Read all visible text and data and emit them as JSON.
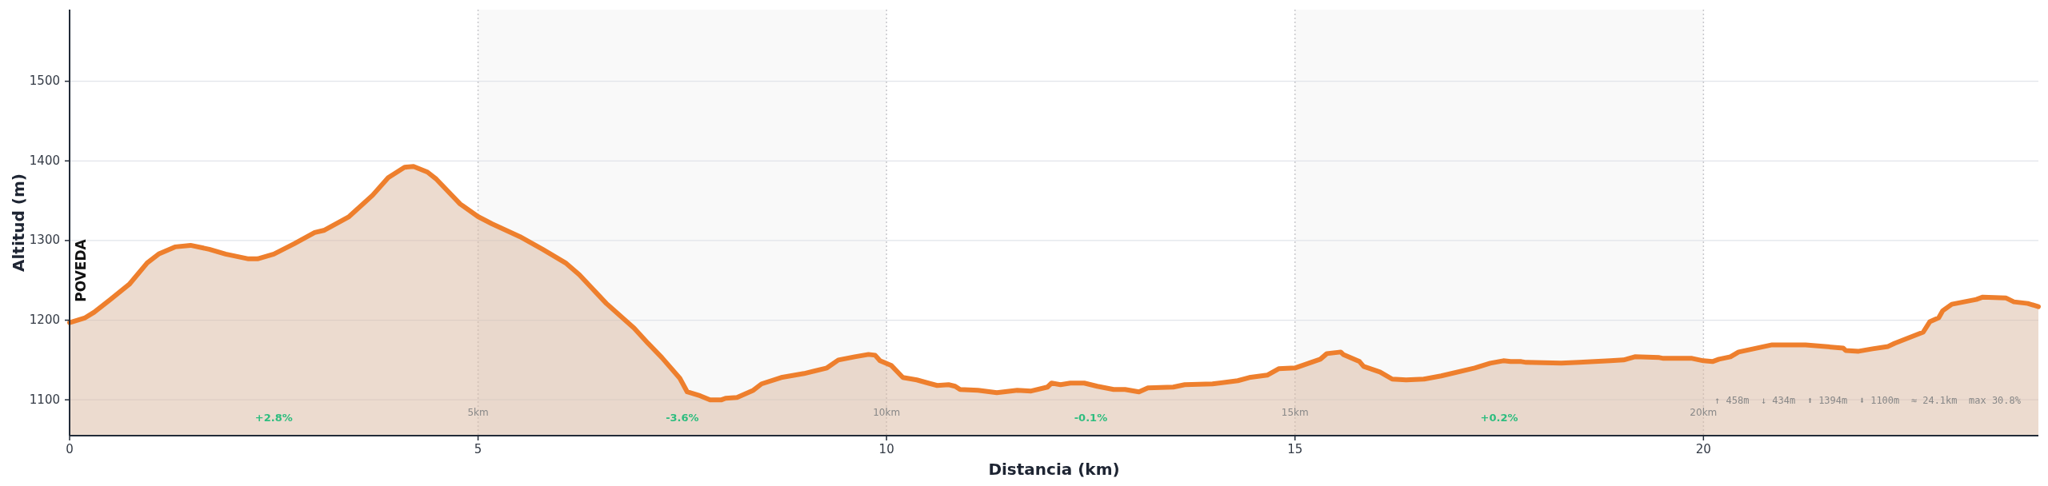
{
  "chart_data": {
    "type": "area",
    "xlabel": "Distancia (km)",
    "ylabel": "Altitud (m)",
    "xlim": [
      0,
      24.1
    ],
    "ylim": [
      1055,
      1590
    ],
    "xticks": [
      0,
      5,
      10,
      15,
      20
    ],
    "yticks": [
      1100,
      1200,
      1300,
      1400,
      1500
    ],
    "grid": "y",
    "bands": [
      {
        "axis": "x",
        "from": 5,
        "to": 10,
        "color": "#f9f9f9"
      },
      {
        "axis": "x",
        "from": 15,
        "to": 20,
        "color": "#f9f9f9"
      }
    ],
    "ref_lines": [
      {
        "axis": "x",
        "value": 5,
        "label": "5km",
        "color": "#c8c8cc",
        "line_style": "dotted"
      },
      {
        "axis": "x",
        "value": 10,
        "label": "10km",
        "color": "#c8c8cc",
        "line_style": "dotted"
      },
      {
        "axis": "x",
        "value": 15,
        "label": "15km",
        "color": "#c8c8cc",
        "line_style": "dotted"
      },
      {
        "axis": "x",
        "value": 20,
        "label": "20km",
        "color": "#c8c8cc",
        "line_style": "dotted"
      }
    ],
    "annotations": [
      "POVEDA",
      "+2.8%",
      "-3.6%",
      "-0.1%",
      "+0.2%",
      "↑ 458m  ↓ 434m  ⬆ 1394m  ⬇ 1100m  ≈ 24.1km  max 30.8%"
    ],
    "series": [
      {
        "color": "#ee7f2d",
        "x": [
          0,
          0.19,
          0.3,
          0.5,
          0.73,
          0.95,
          1.09,
          1.29,
          1.48,
          1.71,
          1.91,
          2.19,
          2.3,
          2.5,
          2.75,
          3.0,
          3.12,
          3.42,
          3.71,
          3.9,
          4.1,
          4.21,
          4.38,
          4.49,
          4.78,
          5.0,
          5.17,
          5.51,
          5.79,
          6.07,
          6.24,
          6.57,
          6.91,
          7.08,
          7.25,
          7.47,
          7.56,
          7.72,
          7.84,
          7.98,
          8.03,
          8.17,
          8.37,
          8.47,
          8.71,
          8.99,
          9.27,
          9.41,
          9.61,
          9.78,
          9.86,
          9.92,
          10.06,
          10.2,
          10.37,
          10.51,
          10.62,
          10.76,
          10.84,
          10.9,
          11.12,
          11.35,
          11.6,
          11.77,
          11.97,
          12.02,
          12.13,
          12.25,
          12.42,
          12.58,
          12.78,
          12.92,
          13.09,
          13.2,
          13.51,
          13.65,
          13.99,
          14.3,
          14.44,
          14.66,
          14.8,
          15.0,
          15.31,
          15.39,
          15.56,
          15.59,
          15.79,
          15.84,
          16.04,
          16.19,
          16.36,
          16.58,
          16.79,
          17.2,
          17.39,
          17.55,
          17.64,
          17.77,
          17.83,
          18.26,
          18.48,
          18.86,
          19.02,
          19.16,
          19.46,
          19.51,
          19.86,
          20.0,
          20.11,
          20.19,
          20.33,
          20.43,
          20.84,
          21.25,
          21.71,
          21.74,
          21.9,
          22.07,
          22.26,
          22.34,
          22.69,
          22.77,
          22.88,
          22.93,
          23.04,
          23.34,
          23.42,
          23.7,
          23.8,
          23.97,
          24.1
        ],
        "values": [
          1197,
          1203,
          1210,
          1226,
          1245,
          1272,
          1283,
          1292,
          1294,
          1289,
          1283,
          1277,
          1277,
          1283,
          1296,
          1310,
          1313,
          1330,
          1357,
          1379,
          1392,
          1393,
          1386,
          1377,
          1346,
          1330,
          1321,
          1305,
          1289,
          1272,
          1257,
          1221,
          1190,
          1171,
          1153,
          1127,
          1110,
          1105,
          1100,
          1100,
          1102,
          1103,
          1112,
          1120,
          1128,
          1133,
          1140,
          1150,
          1154,
          1157,
          1156,
          1149,
          1143,
          1128,
          1125,
          1121,
          1118,
          1119,
          1117,
          1113,
          1112,
          1109,
          1112,
          1111,
          1116,
          1121,
          1119,
          1121,
          1121,
          1117,
          1113,
          1113,
          1110,
          1115,
          1116,
          1119,
          1120,
          1124,
          1128,
          1131,
          1139,
          1140,
          1151,
          1158,
          1160,
          1157,
          1148,
          1142,
          1135,
          1126,
          1125,
          1126,
          1130,
          1140,
          1146,
          1149,
          1148,
          1148,
          1147,
          1146,
          1147,
          1149,
          1150,
          1154,
          1153,
          1152,
          1152,
          1149,
          1148,
          1151,
          1154,
          1160,
          1169,
          1169,
          1165,
          1162,
          1161,
          1164,
          1167,
          1171,
          1185,
          1198,
          1203,
          1212,
          1220,
          1226,
          1229,
          1228,
          1223,
          1221,
          1217
        ]
      }
    ]
  }
}
